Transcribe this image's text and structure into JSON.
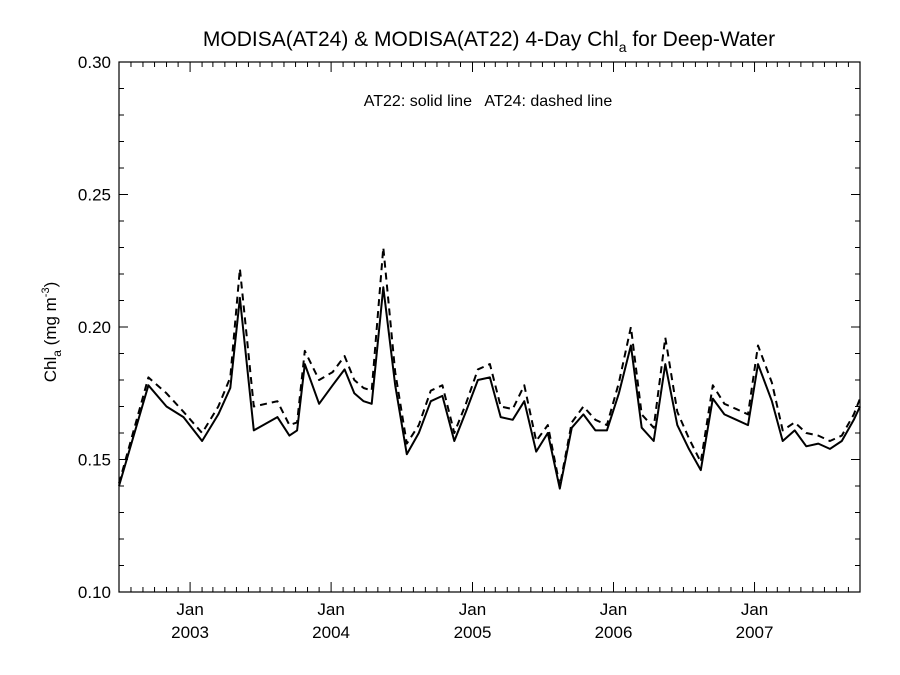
{
  "chart_data": {
    "type": "line",
    "title": {
      "prefix": "MODISA(AT24) & MODISA(AT22) 4-Day Chl",
      "subscript": "a",
      "suffix": " for Deep-Water"
    },
    "ylabel": {
      "main": "Chl",
      "subscript": "a",
      "units": " (mg m",
      "superscript": "-3",
      "close": ")"
    },
    "annotation": "AT22: solid line   AT24: dashed line",
    "ylim": [
      0.1,
      0.3
    ],
    "y_ticks": [
      "0.10",
      "0.15",
      "0.20",
      "0.25",
      "0.30"
    ],
    "y_tick_values": [
      0.1,
      0.15,
      0.2,
      0.25,
      0.3
    ],
    "xlim": [
      "2002-07-01",
      "2007-10-01"
    ],
    "x_ticks": [
      {
        "date": "2003-01-01",
        "top": "Jan",
        "bottom": "2003"
      },
      {
        "date": "2004-01-01",
        "top": "Jan",
        "bottom": "2004"
      },
      {
        "date": "2005-01-01",
        "top": "Jan",
        "bottom": "2005"
      },
      {
        "date": "2006-01-01",
        "top": "Jan",
        "bottom": "2006"
      },
      {
        "date": "2007-01-01",
        "top": "Jan",
        "bottom": "2007"
      }
    ],
    "grid": false,
    "series": [
      {
        "name": "AT22",
        "style": "solid",
        "color": "#000000",
        "x": [
          "2002-07-01",
          "2002-09-15",
          "2002-11-01",
          "2002-12-15",
          "2003-02-01",
          "2003-03-15",
          "2003-04-15",
          "2003-05-10",
          "2003-06-15",
          "2003-08-15",
          "2003-09-15",
          "2003-10-05",
          "2003-10-25",
          "2003-12-01",
          "2004-01-05",
          "2004-02-05",
          "2004-03-01",
          "2004-03-25",
          "2004-04-15",
          "2004-05-15",
          "2004-06-15",
          "2004-07-15",
          "2004-08-15",
          "2004-09-15",
          "2004-10-15",
          "2004-11-15",
          "2004-12-15",
          "2005-01-15",
          "2005-02-15",
          "2005-03-15",
          "2005-04-15",
          "2005-05-15",
          "2005-06-15",
          "2005-07-15",
          "2005-08-15",
          "2005-09-15",
          "2005-10-15",
          "2005-11-15",
          "2005-12-15",
          "2006-01-15",
          "2006-02-15",
          "2006-03-15",
          "2006-04-15",
          "2006-05-15",
          "2006-06-15",
          "2006-07-15",
          "2006-08-15",
          "2006-09-15",
          "2006-10-15",
          "2006-11-15",
          "2006-12-15",
          "2007-01-10",
          "2007-02-15",
          "2007-03-15",
          "2007-04-15",
          "2007-05-15",
          "2007-06-15",
          "2007-07-15",
          "2007-08-15",
          "2007-09-15",
          "2007-10-01"
        ],
        "y": [
          0.14,
          0.178,
          0.17,
          0.166,
          0.157,
          0.167,
          0.177,
          0.211,
          0.161,
          0.166,
          0.159,
          0.161,
          0.186,
          0.171,
          0.178,
          0.184,
          0.175,
          0.172,
          0.171,
          0.215,
          0.178,
          0.152,
          0.16,
          0.172,
          0.174,
          0.157,
          0.168,
          0.18,
          0.181,
          0.166,
          0.165,
          0.172,
          0.153,
          0.16,
          0.139,
          0.162,
          0.167,
          0.161,
          0.161,
          0.175,
          0.193,
          0.162,
          0.157,
          0.186,
          0.163,
          0.154,
          0.146,
          0.173,
          0.167,
          0.165,
          0.163,
          0.186,
          0.172,
          0.157,
          0.161,
          0.155,
          0.156,
          0.154,
          0.157,
          0.165,
          0.17
        ]
      },
      {
        "name": "AT24",
        "style": "dashed",
        "color": "#000000",
        "x": [
          "2002-07-01",
          "2002-09-15",
          "2002-11-01",
          "2002-12-15",
          "2003-02-01",
          "2003-03-15",
          "2003-04-15",
          "2003-05-10",
          "2003-06-15",
          "2003-08-15",
          "2003-09-15",
          "2003-10-05",
          "2003-10-25",
          "2003-12-01",
          "2004-01-05",
          "2004-02-05",
          "2004-03-01",
          "2004-03-25",
          "2004-04-15",
          "2004-05-15",
          "2004-06-15",
          "2004-07-15",
          "2004-08-15",
          "2004-09-15",
          "2004-10-15",
          "2004-11-15",
          "2004-12-15",
          "2005-01-15",
          "2005-02-15",
          "2005-03-15",
          "2005-04-15",
          "2005-05-15",
          "2005-06-15",
          "2005-07-15",
          "2005-08-15",
          "2005-09-15",
          "2005-10-15",
          "2005-11-15",
          "2005-12-15",
          "2006-01-15",
          "2006-02-15",
          "2006-03-15",
          "2006-04-15",
          "2006-05-15",
          "2006-06-15",
          "2006-07-15",
          "2006-08-15",
          "2006-09-15",
          "2006-10-15",
          "2006-11-15",
          "2006-12-15",
          "2007-01-10",
          "2007-02-15",
          "2007-03-15",
          "2007-04-15",
          "2007-05-15",
          "2007-06-15",
          "2007-07-15",
          "2007-08-15",
          "2007-09-15",
          "2007-10-01"
        ],
        "y": [
          0.141,
          0.181,
          0.175,
          0.168,
          0.16,
          0.17,
          0.181,
          0.222,
          0.17,
          0.172,
          0.163,
          0.164,
          0.191,
          0.18,
          0.183,
          0.189,
          0.18,
          0.177,
          0.176,
          0.23,
          0.183,
          0.156,
          0.163,
          0.176,
          0.178,
          0.16,
          0.171,
          0.184,
          0.186,
          0.17,
          0.169,
          0.178,
          0.157,
          0.163,
          0.14,
          0.164,
          0.17,
          0.165,
          0.163,
          0.179,
          0.2,
          0.167,
          0.162,
          0.196,
          0.168,
          0.158,
          0.149,
          0.178,
          0.171,
          0.169,
          0.167,
          0.193,
          0.179,
          0.161,
          0.164,
          0.16,
          0.159,
          0.157,
          0.159,
          0.167,
          0.173
        ]
      }
    ]
  }
}
